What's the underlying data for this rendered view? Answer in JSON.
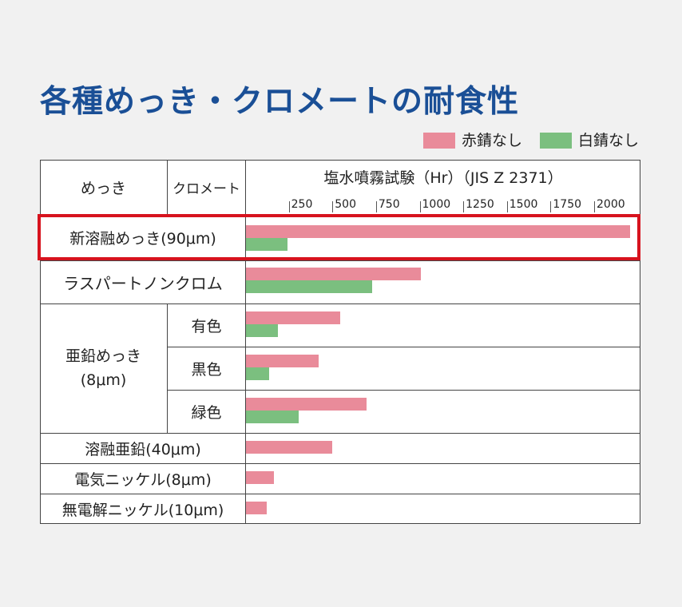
{
  "title": "各種めっき・クロメートの耐食性",
  "legend": {
    "red_label": "赤錆なし",
    "green_label": "白錆なし"
  },
  "colors": {
    "red_rust": "#e98b9a",
    "white_rust": "#7bbf7f",
    "title": "#1a4f96",
    "highlight": "#d7131e"
  },
  "header": {
    "plating": "めっき",
    "chromate": "クロメート",
    "axis_title": "塩水噴霧試験（Hr）（JIS Z 2371）"
  },
  "rows": {
    "hot_dip": "新溶融めっき(90μm)",
    "raspart": "ラスパートノンクロム",
    "zinc_group": "亜鉛めっき",
    "zinc_group_thickness": "(8μm)",
    "yellow": "有色",
    "black": "黒色",
    "green": "緑色",
    "hot_dip_zinc": "溶融亜鉛(40μm)",
    "electro_nickel": "電気ニッケル(8μm)",
    "electroless_nickel": "無電解ニッケル(10μm)"
  },
  "chart_data": {
    "type": "bar",
    "orientation": "horizontal",
    "title": "各種めっき・クロメートの耐食性",
    "xlabel": "塩水噴霧試験（Hr）（JIS Z 2371）",
    "xlim": [
      0,
      2200
    ],
    "ticks": [
      "250",
      "500",
      "750",
      "1000",
      "1250",
      "1500",
      "1750",
      "2000"
    ],
    "categories": [
      "新溶融めっき(90μm)",
      "ラスパートノンクロム",
      "亜鉛めっき(8μm) 有色",
      "亜鉛めっき(8μm) 黒色",
      "亜鉛めっき(8μm) 緑色",
      "溶融亜鉛(40μm)",
      "電気ニッケル(8μm)",
      "無電解ニッケル(10μm)"
    ],
    "series": [
      {
        "name": "赤錆なし",
        "values": [
          2200,
          1000,
          540,
          415,
          690,
          495,
          160,
          120
        ]
      },
      {
        "name": "白錆なし",
        "values": [
          240,
          725,
          185,
          135,
          300,
          null,
          null,
          null
        ]
      }
    ],
    "legend": "top-right"
  }
}
